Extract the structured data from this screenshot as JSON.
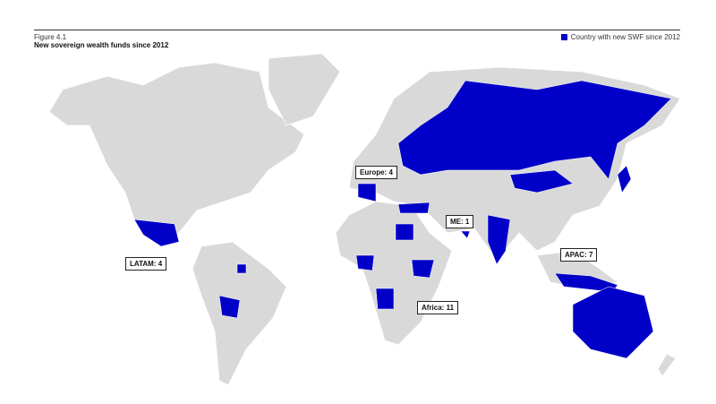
{
  "header": {
    "figure_label": "Figure 4.1",
    "title": "New sovereign wealth funds since 2012",
    "legend_label": "Country with new SWF since 2012"
  },
  "colors": {
    "highlight": "#0000c8",
    "land": "#d9d9d9"
  },
  "regions": [
    {
      "label": "Europe: 4"
    },
    {
      "label": "ME: 1"
    },
    {
      "label": "LATAM: 4"
    },
    {
      "label": "APAC: 7"
    },
    {
      "label": "Africa: 11"
    }
  ]
}
